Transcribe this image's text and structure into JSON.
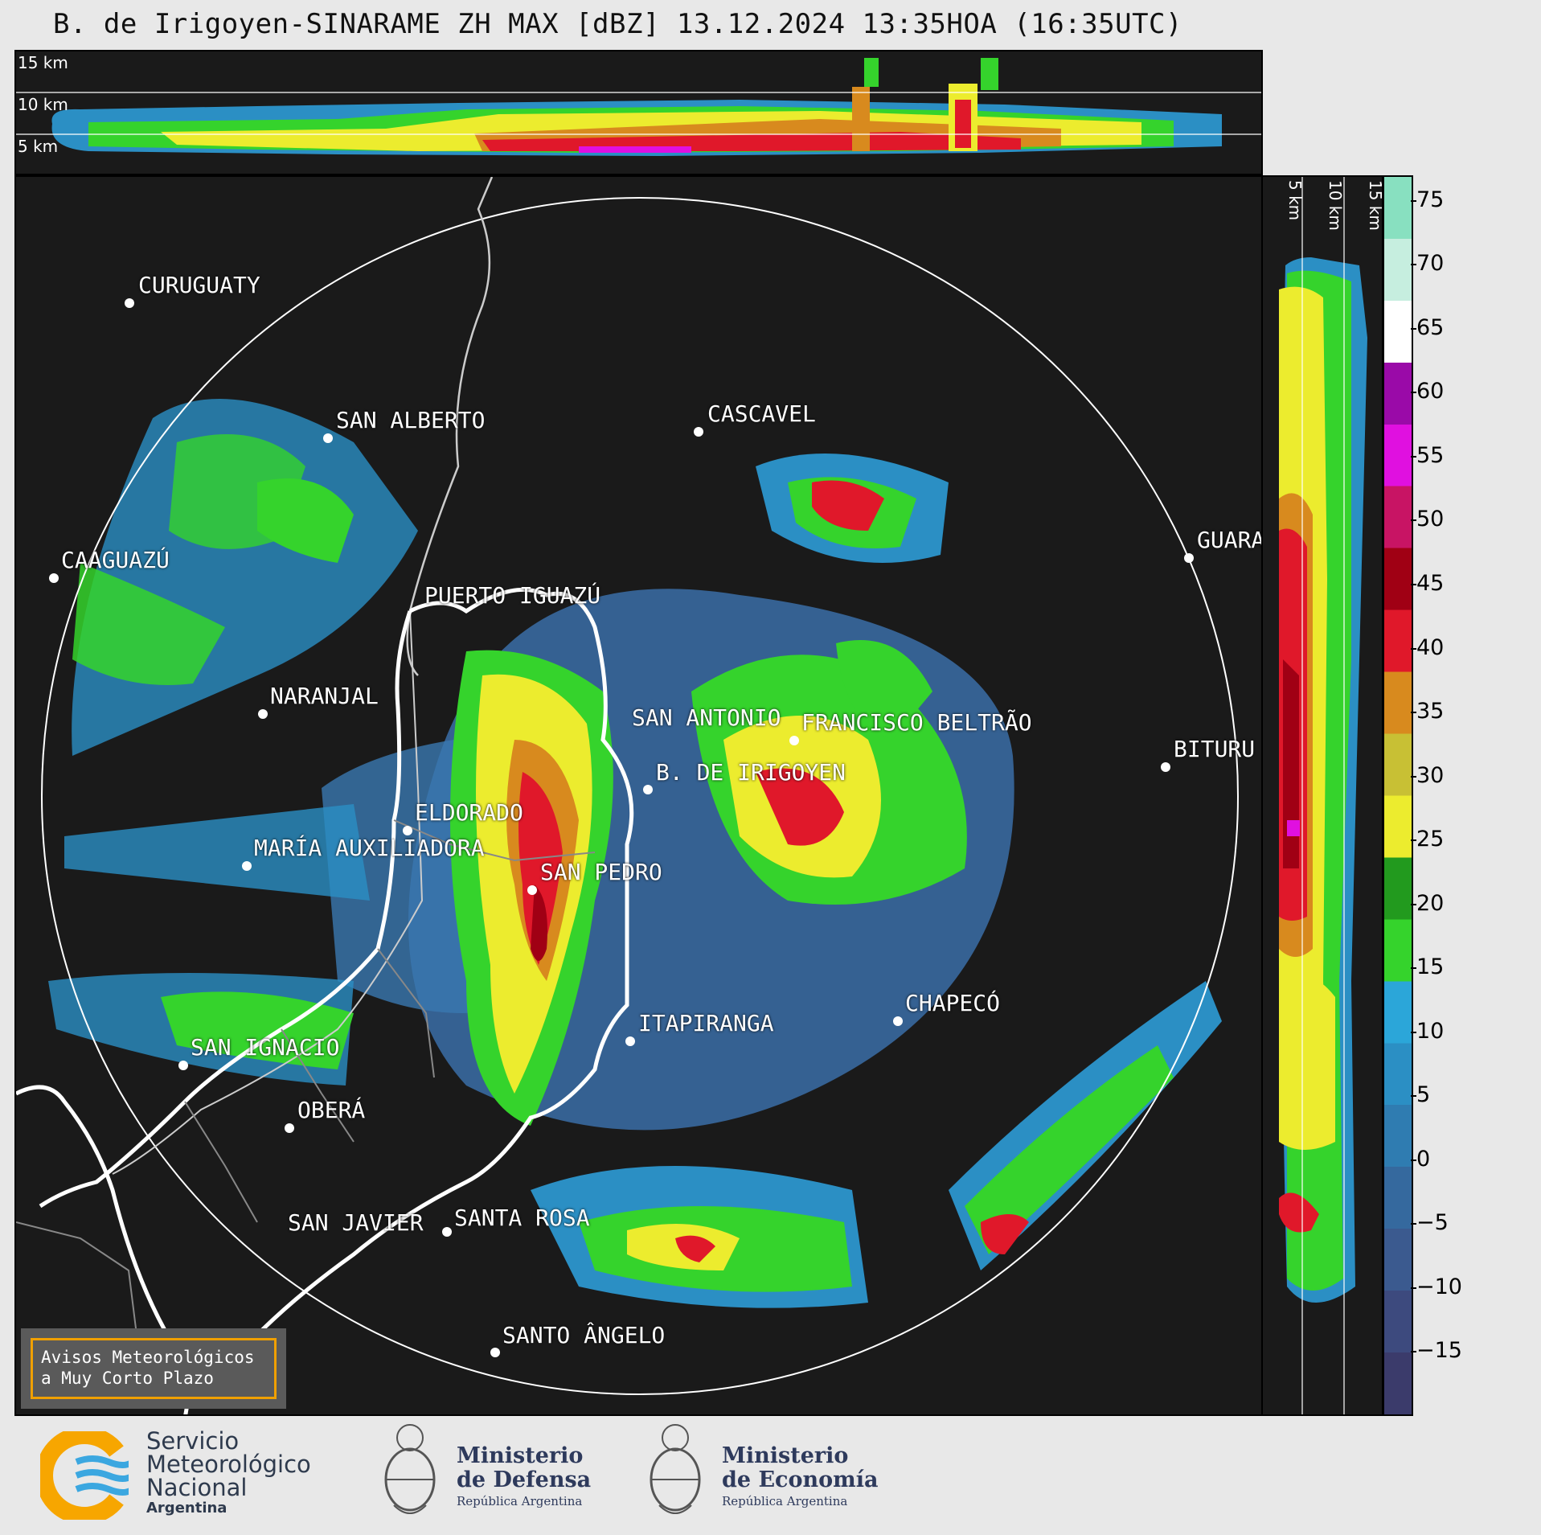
{
  "title": "B. de Irigoyen-SINARAME ZH MAX [dBZ] 13.12.2024 13:35HOA (16:35UTC)",
  "top_panel": {
    "labels": [
      "15 km",
      "10 km",
      "5 km"
    ]
  },
  "side_panel": {
    "labels": [
      "5 km",
      "10 km",
      "15 km"
    ]
  },
  "colorbar": {
    "ticks": [
      "75",
      "70",
      "65",
      "60",
      "55",
      "50",
      "45",
      "40",
      "35",
      "30",
      "25",
      "20",
      "15",
      "10",
      "5",
      "0",
      "−5",
      "−10",
      "−15"
    ],
    "range": [
      -20,
      77
    ],
    "colors": [
      "#3b3b6b",
      "#3d4a7e",
      "#3b5a8f",
      "#35699e",
      "#2f7cb1",
      "#2b8fc4",
      "#2ba6d9",
      "#35d32c",
      "#229a1e",
      "#ecec2e",
      "#c8c034",
      "#d88a1e",
      "#e0182a",
      "#a00014",
      "#c81464",
      "#e010e0",
      "#9a0aa8",
      "#ffffff",
      "#c6eedf",
      "#88e0c0"
    ]
  },
  "cities": [
    {
      "name": "CURUGUATY"
    },
    {
      "name": "SAN ALBERTO"
    },
    {
      "name": "CASCAVEL"
    },
    {
      "name": "CAAGUAZÚ"
    },
    {
      "name": "GUARA"
    },
    {
      "name": "PUERTO IGUAZÚ"
    },
    {
      "name": "NARANJAL"
    },
    {
      "name": "SAN ANTONIO"
    },
    {
      "name": "FRANCISCO BELTRÃO"
    },
    {
      "name": "BITURU"
    },
    {
      "name": "B. DE IRIGOYEN"
    },
    {
      "name": "ELDORADO"
    },
    {
      "name": "MARÍA AUXILIADORA"
    },
    {
      "name": "SAN PEDRO"
    },
    {
      "name": "CHAPECÓ"
    },
    {
      "name": "ITAPIRANGA"
    },
    {
      "name": "SAN IGNACIO"
    },
    {
      "name": "OBERÁ"
    },
    {
      "name": "SAN JAVIER"
    },
    {
      "name": "SANTA ROSA"
    },
    {
      "name": "SANTO ÂNGELO"
    }
  ],
  "avisos": {
    "line1": "Avisos Meteorológicos",
    "line2": "a Muy Corto Plazo"
  },
  "footer": {
    "smn": {
      "line1": "Servicio",
      "line2": "Meteorológico",
      "line3": "Nacional",
      "line4": "Argentina"
    },
    "defensa": {
      "line1": "Ministerio",
      "line2": "de Defensa",
      "sub": "República Argentina"
    },
    "economia": {
      "line1": "Ministerio",
      "line2": "de Economía",
      "sub": "República Argentina"
    }
  }
}
